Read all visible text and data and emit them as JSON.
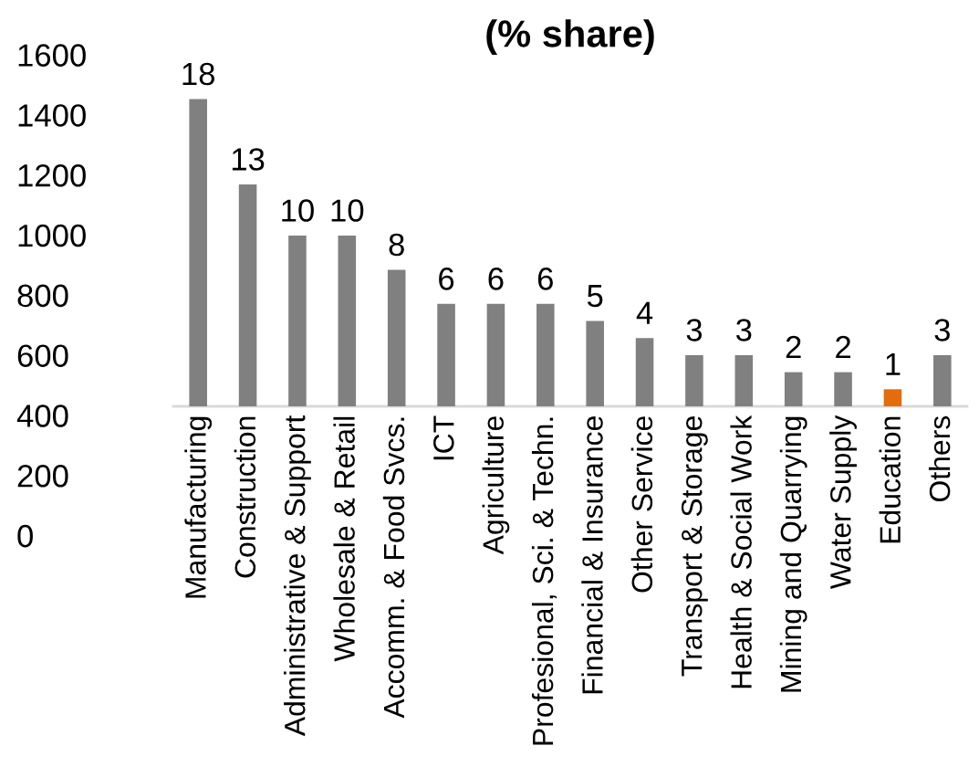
{
  "chart_data": {
    "type": "bar",
    "title": "(% share)",
    "categories": [
      "Manufacturing",
      "Construction",
      "Administrative & Support",
      "Wholesale & Retail",
      "Accomm. & Food Svcs.",
      "ICT",
      "Agriculture",
      "Profesional, Sci. & Techn.",
      "Financial & Insurance",
      "Other Service",
      "Transport & Storage",
      "Health & Social Work",
      "Mining and Quarrying",
      "Water Supply",
      "Education",
      "Others"
    ],
    "series": [
      {
        "axis": "y2",
        "values": [
          18,
          13,
          10,
          10,
          8,
          6,
          6,
          6,
          5,
          4,
          3,
          3,
          2,
          2,
          1,
          3
        ],
        "colors": [
          "#808080",
          "#808080",
          "#808080",
          "#808080",
          "#808080",
          "#808080",
          "#808080",
          "#808080",
          "#808080",
          "#808080",
          "#808080",
          "#808080",
          "#808080",
          "#808080",
          "#e46c0a",
          "#808080"
        ]
      }
    ],
    "data_labels": true,
    "ylim": [
      0,
      1600
    ],
    "yticks": [
      0,
      200,
      400,
      600,
      800,
      1000,
      1200,
      1400,
      1600
    ]
  }
}
